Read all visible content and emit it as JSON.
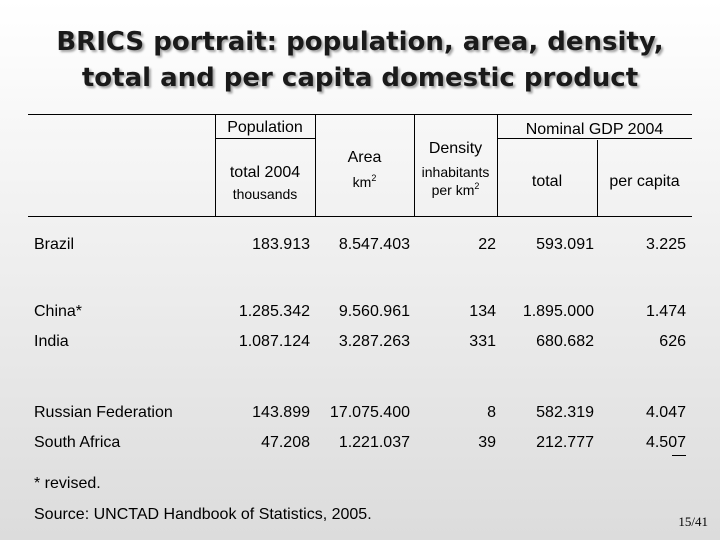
{
  "title": {
    "line1": "BRICS portrait: population, area, density,",
    "line2": "total and per capita domestic product"
  },
  "headers": {
    "population": "Population",
    "nominal_gdp": "Nominal GDP 2004",
    "total_2004": "total 2004",
    "thousands": "thousands",
    "area": "Area",
    "area_unit": "km",
    "area_unit_sup": "2",
    "density": "Density",
    "density_unit_line1": "inhabitants",
    "density_unit_line2": "per km",
    "density_unit_sup": "2",
    "gdp_total": "total",
    "gdp_per_capita": "per capita"
  },
  "rows": [
    {
      "country": "Brazil",
      "population": "183.913",
      "area": "8.547.403",
      "density": "22",
      "gdp_total": "593.091",
      "gdp_per_capita": "3.225"
    },
    {
      "country": "China*",
      "population": "1.285.342",
      "area": "9.560.961",
      "density": "134",
      "gdp_total": "1.895.000",
      "gdp_per_capita": "1.474"
    },
    {
      "country": "India",
      "population": "1.087.124",
      "area": "3.287.263",
      "density": "331",
      "gdp_total": "680.682",
      "gdp_per_capita": "626"
    },
    {
      "country": "Russian Federation",
      "population": "143.899",
      "area": "17.075.400",
      "density": "8",
      "gdp_total": "582.319",
      "gdp_per_capita": "4.047"
    },
    {
      "country": "South Africa",
      "population": "47.208",
      "area": "1.221.037",
      "density": "39",
      "gdp_total": "212.777",
      "gdp_per_capita": "4.507"
    }
  ],
  "footnote": "* revised.",
  "source": "Source: UNCTAD Handbook of Statistics, 2005.",
  "page_number": "15/41"
}
